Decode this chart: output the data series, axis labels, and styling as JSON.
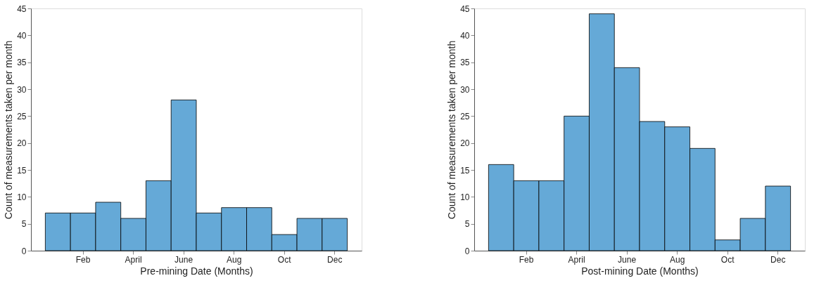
{
  "chart_data": [
    {
      "type": "bar",
      "xlabel": "Pre-mining Date (Months)",
      "ylabel": "Count of measurements taken per month",
      "categories": [
        null,
        "Feb",
        null,
        "April",
        null,
        "June",
        null,
        "Aug",
        null,
        "Oct",
        null,
        "Dec"
      ],
      "values": [
        7,
        7,
        9,
        6,
        13,
        28,
        7,
        8,
        8,
        3,
        6,
        6
      ],
      "color": "#65a9d7",
      "ylim": [
        0,
        45
      ],
      "yticks": [
        0,
        5,
        10,
        15,
        20,
        25,
        30,
        35,
        40,
        45
      ],
      "grid": false
    },
    {
      "type": "bar",
      "xlabel": "Post-mining Date (Months)",
      "ylabel": "Count of measurements taken per month",
      "categories": [
        null,
        "Feb",
        null,
        "April",
        null,
        "June",
        null,
        "Aug",
        null,
        "Oct",
        null,
        "Dec"
      ],
      "values": [
        16,
        13,
        13,
        25,
        44,
        34,
        24,
        23,
        19,
        2,
        6,
        12
      ],
      "color": "#65a9d7",
      "ylim": [
        0,
        45
      ],
      "yticks": [
        0,
        5,
        10,
        15,
        20,
        25,
        30,
        35,
        40,
        45
      ],
      "grid": false
    }
  ]
}
